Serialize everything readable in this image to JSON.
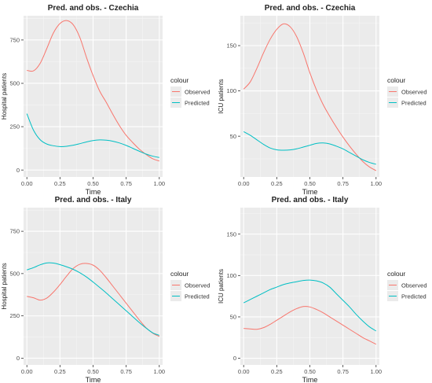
{
  "chart_data": [
    {
      "type": "line",
      "title": "Pred. and obs. - Czechia",
      "xlabel": "Time",
      "ylabel": "Hospital patients",
      "xlim": [
        -0.025,
        1.025
      ],
      "ylim": [
        -40,
        890
      ],
      "x_ticks": [
        0,
        0.25,
        0.5,
        0.75,
        1
      ],
      "x_tick_labels": [
        "0.00",
        "0.25",
        "0.50",
        "0.75",
        "1.00"
      ],
      "y_ticks": [
        0,
        250,
        500,
        750
      ],
      "y_tick_labels": [
        "0",
        "250",
        "500",
        "750"
      ],
      "grid": true,
      "legend": {
        "title": "colour",
        "position": "right"
      },
      "series": [
        {
          "name": "Observed",
          "color": "#F8766D",
          "x": [
            0,
            0.05,
            0.1,
            0.15,
            0.2,
            0.25,
            0.3,
            0.35,
            0.4,
            0.45,
            0.5,
            0.55,
            0.6,
            0.65,
            0.7,
            0.75,
            0.8,
            0.85,
            0.9,
            0.95,
            1.0
          ],
          "y": [
            575,
            572,
            615,
            700,
            790,
            845,
            862,
            838,
            765,
            650,
            545,
            455,
            390,
            320,
            255,
            200,
            158,
            120,
            90,
            65,
            52
          ]
        },
        {
          "name": "Predicted",
          "color": "#00BFC4",
          "x": [
            0,
            0.05,
            0.1,
            0.15,
            0.2,
            0.25,
            0.3,
            0.35,
            0.4,
            0.45,
            0.5,
            0.55,
            0.6,
            0.65,
            0.7,
            0.75,
            0.8,
            0.85,
            0.9,
            0.95,
            1.0
          ],
          "y": [
            325,
            230,
            175,
            150,
            140,
            135,
            137,
            143,
            152,
            162,
            170,
            174,
            172,
            166,
            156,
            142,
            125,
            108,
            92,
            80,
            72
          ]
        }
      ]
    },
    {
      "type": "line",
      "title": "Pred. and obs. - Czechia",
      "xlabel": "Time",
      "ylabel": "ICU patients",
      "xlim": [
        -0.025,
        1.025
      ],
      "ylim": [
        5,
        183
      ],
      "x_ticks": [
        0,
        0.25,
        0.5,
        0.75,
        1
      ],
      "x_tick_labels": [
        "0.00",
        "0.25",
        "0.50",
        "0.75",
        "1.00"
      ],
      "y_ticks": [
        50,
        100,
        150
      ],
      "y_tick_labels": [
        "50",
        "100",
        "150"
      ],
      "grid": true,
      "legend": {
        "title": "colour",
        "position": "right"
      },
      "series": [
        {
          "name": "Observed",
          "color": "#F8766D",
          "x": [
            0,
            0.05,
            0.1,
            0.15,
            0.2,
            0.25,
            0.3,
            0.35,
            0.4,
            0.45,
            0.5,
            0.55,
            0.6,
            0.65,
            0.7,
            0.75,
            0.8,
            0.85,
            0.9,
            0.95,
            1.0
          ],
          "y": [
            102,
            110,
            125,
            142,
            157,
            168,
            174,
            171,
            160,
            142,
            120,
            101,
            85,
            72,
            60,
            49,
            39,
            30,
            22,
            16,
            12
          ]
        },
        {
          "name": "Predicted",
          "color": "#00BFC4",
          "x": [
            0,
            0.05,
            0.1,
            0.15,
            0.2,
            0.25,
            0.3,
            0.35,
            0.4,
            0.45,
            0.5,
            0.55,
            0.6,
            0.65,
            0.7,
            0.75,
            0.8,
            0.85,
            0.9,
            0.95,
            1.0
          ],
          "y": [
            55,
            51,
            46,
            41,
            37,
            35,
            34.5,
            34.8,
            36,
            38,
            40,
            42,
            42.5,
            41.5,
            39,
            36,
            32,
            28,
            24,
            21,
            19
          ]
        }
      ]
    },
    {
      "type": "line",
      "title": "Pred. and obs. - Italy",
      "xlabel": "Time",
      "ylabel": "Hospital patients",
      "xlim": [
        -0.025,
        1.025
      ],
      "ylim": [
        -40,
        890
      ],
      "x_ticks": [
        0,
        0.25,
        0.5,
        0.75,
        1
      ],
      "x_tick_labels": [
        "0.00",
        "0.25",
        "0.50",
        "0.75",
        "1.00"
      ],
      "y_ticks": [
        0,
        250,
        500,
        750
      ],
      "y_tick_labels": [
        "0",
        "250",
        "500",
        "750"
      ],
      "grid": true,
      "legend": {
        "title": "colour",
        "position": "right"
      },
      "series": [
        {
          "name": "Observed",
          "color": "#F8766D",
          "x": [
            0,
            0.05,
            0.1,
            0.15,
            0.2,
            0.25,
            0.3,
            0.35,
            0.4,
            0.45,
            0.5,
            0.55,
            0.6,
            0.65,
            0.7,
            0.75,
            0.8,
            0.85,
            0.9,
            0.95,
            1.0
          ],
          "y": [
            365,
            357,
            343,
            355,
            390,
            435,
            485,
            530,
            555,
            560,
            550,
            520,
            475,
            425,
            375,
            325,
            275,
            225,
            180,
            148,
            128
          ]
        },
        {
          "name": "Predicted",
          "color": "#00BFC4",
          "x": [
            0,
            0.05,
            0.1,
            0.15,
            0.2,
            0.25,
            0.3,
            0.35,
            0.4,
            0.45,
            0.5,
            0.55,
            0.6,
            0.65,
            0.7,
            0.75,
            0.8,
            0.85,
            0.9,
            0.95,
            1.0
          ],
          "y": [
            522,
            535,
            552,
            563,
            562,
            553,
            540,
            525,
            505,
            480,
            450,
            418,
            385,
            350,
            315,
            280,
            245,
            210,
            178,
            150,
            135
          ]
        }
      ]
    },
    {
      "type": "line",
      "title": "Pred. and obs. - Italy",
      "xlabel": "Time",
      "ylabel": "ICU patients",
      "xlim": [
        -0.025,
        1.025
      ],
      "ylim": [
        -8,
        182
      ],
      "x_ticks": [
        0,
        0.25,
        0.5,
        0.75,
        1
      ],
      "x_tick_labels": [
        "0.00",
        "0.25",
        "0.50",
        "0.75",
        "1.00"
      ],
      "y_ticks": [
        0,
        50,
        100,
        150
      ],
      "y_tick_labels": [
        "0",
        "50",
        "100",
        "150"
      ],
      "grid": true,
      "legend": {
        "title": "colour",
        "position": "right"
      },
      "series": [
        {
          "name": "Observed",
          "color": "#F8766D",
          "x": [
            0,
            0.05,
            0.1,
            0.15,
            0.2,
            0.25,
            0.3,
            0.35,
            0.4,
            0.45,
            0.5,
            0.55,
            0.6,
            0.65,
            0.7,
            0.75,
            0.8,
            0.85,
            0.9,
            0.95,
            1.0
          ],
          "y": [
            36,
            35.5,
            35,
            37,
            41,
            46,
            51,
            56,
            60,
            62.5,
            62,
            59,
            55,
            50,
            45,
            40,
            35,
            30,
            25,
            21,
            17
          ]
        },
        {
          "name": "Predicted",
          "color": "#00BFC4",
          "x": [
            0,
            0.05,
            0.1,
            0.15,
            0.2,
            0.25,
            0.3,
            0.35,
            0.4,
            0.45,
            0.5,
            0.55,
            0.6,
            0.65,
            0.7,
            0.75,
            0.8,
            0.85,
            0.9,
            0.95,
            1.0
          ],
          "y": [
            67,
            71,
            75,
            79,
            83,
            86,
            89,
            91,
            92.5,
            94,
            94.5,
            93.5,
            91,
            86,
            78,
            70,
            62,
            53,
            45,
            38,
            33
          ]
        }
      ]
    }
  ]
}
